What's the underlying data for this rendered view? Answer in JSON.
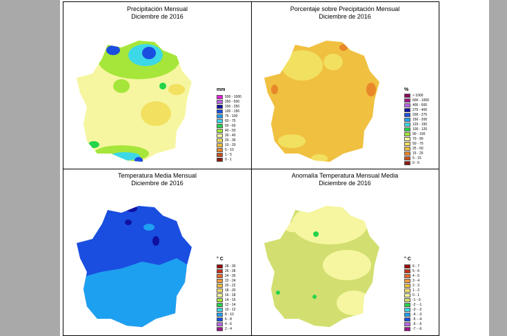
{
  "panels": [
    {
      "title": "Precipitación Mensual",
      "subtitle": "Diciembre de 2016",
      "unit": "mm",
      "legend": [
        {
          "label": "500 - 1000",
          "color": "#e21ed9"
        },
        {
          "label": "250 - 500",
          "color": "#b866e6"
        },
        {
          "label": "150 - 250",
          "color": "#1010a0"
        },
        {
          "label": "100 - 150",
          "color": "#1a4ee0"
        },
        {
          "label": "75 - 100",
          "color": "#1ea0f0"
        },
        {
          "label": "60 - 75",
          "color": "#3dd8e8"
        },
        {
          "label": "50 - 60",
          "color": "#24d44a"
        },
        {
          "label": "40 - 50",
          "color": "#a6e63a"
        },
        {
          "label": "30 - 40",
          "color": "#f6f6a0"
        },
        {
          "label": "20 - 30",
          "color": "#f2e060"
        },
        {
          "label": "10 - 20",
          "color": "#f0c040"
        },
        {
          "label": "5 - 10",
          "color": "#e8882a"
        },
        {
          "label": "1 - 5",
          "color": "#c8501a"
        },
        {
          "label": "0 - 1",
          "color": "#8c1a10"
        }
      ]
    },
    {
      "title": "Porcentaje sobre Precipitación Mensual",
      "subtitle": "Diciembre de 2016",
      "unit": "%",
      "legend": [
        {
          "label": "> 1000",
          "color": "#8c0a5a"
        },
        {
          "label": "600 - 1000",
          "color": "#a0148a"
        },
        {
          "label": "400 - 600",
          "color": "#b866e6"
        },
        {
          "label": "275 - 400",
          "color": "#1010a0"
        },
        {
          "label": "200 - 275",
          "color": "#1a4ee0"
        },
        {
          "label": "150 - 200",
          "color": "#1ea0f0"
        },
        {
          "label": "120 - 150",
          "color": "#3dd8e8"
        },
        {
          "label": "100 - 120",
          "color": "#24d44a"
        },
        {
          "label": "90 - 100",
          "color": "#a6e63a"
        },
        {
          "label": "70 - 90",
          "color": "#f6f6a0"
        },
        {
          "label": "50 - 70",
          "color": "#f2e060"
        },
        {
          "label": "25 - 50",
          "color": "#f0c040"
        },
        {
          "label": "15 - 25",
          "color": "#e8882a"
        },
        {
          "label": "5 - 15",
          "color": "#c8501a"
        },
        {
          "label": "0 - 5",
          "color": "#8c1a10"
        }
      ]
    },
    {
      "title": "Temperatura Media Mensual",
      "subtitle": "Diciembre de 2016",
      "unit": "° C",
      "legend": [
        {
          "label": "28 - 30",
          "color": "#9a0a0a"
        },
        {
          "label": "26 - 28",
          "color": "#c8321a"
        },
        {
          "label": "24 - 26",
          "color": "#e86a2a"
        },
        {
          "label": "22 - 24",
          "color": "#f09a3a"
        },
        {
          "label": "20 - 22",
          "color": "#f0c040"
        },
        {
          "label": "18 - 20",
          "color": "#f6e070"
        },
        {
          "label": "16 - 18",
          "color": "#f6f6a0"
        },
        {
          "label": "14 - 16",
          "color": "#a6e63a"
        },
        {
          "label": "12 - 14",
          "color": "#24d44a"
        },
        {
          "label": "10 - 12",
          "color": "#3dd8e8"
        },
        {
          "label": "8 - 10",
          "color": "#1ea0f0"
        },
        {
          "label": "6 - 8",
          "color": "#1a4ee0"
        },
        {
          "label": "4 - 6",
          "color": "#b866e6"
        },
        {
          "label": "2 - 4",
          "color": "#a0148a"
        }
      ]
    },
    {
      "title": "Anomalía Temperatura Mensual Media",
      "subtitle": "Diciembre de 2016",
      "unit": "° C",
      "legend": [
        {
          "label": "6 - 7",
          "color": "#9a0a0a"
        },
        {
          "label": "5 - 6",
          "color": "#c8321a"
        },
        {
          "label": "4 - 5",
          "color": "#e86a2a"
        },
        {
          "label": "3 - 4",
          "color": "#f09a3a"
        },
        {
          "label": "2 - 3",
          "color": "#f0c040"
        },
        {
          "label": "1 - 2",
          "color": "#f6e070"
        },
        {
          "label": "0 - 1",
          "color": "#f6f6a0"
        },
        {
          "label": "-1 - 0",
          "color": "#d2df70"
        },
        {
          "label": "-2 - -1",
          "color": "#24d44a"
        },
        {
          "label": "-3 - -2",
          "color": "#3dd8e8"
        },
        {
          "label": "-4 - -3",
          "color": "#1ea0f0"
        },
        {
          "label": "-5 - -4",
          "color": "#1a4ee0"
        },
        {
          "label": "-6 - -5",
          "color": "#b866e6"
        },
        {
          "label": "-7 - -6",
          "color": "#a0148a"
        }
      ]
    }
  ]
}
